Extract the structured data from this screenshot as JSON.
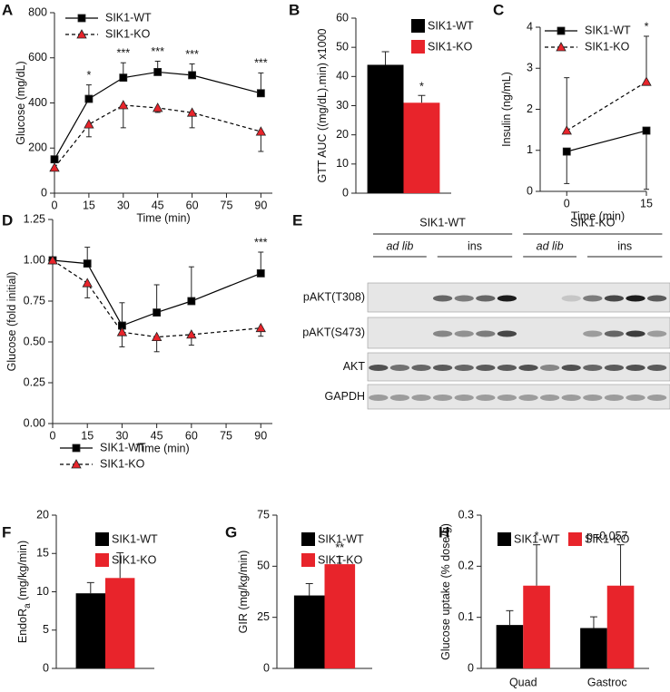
{
  "chart_data": [
    {
      "type": "line",
      "panel": "A",
      "y_label": "Glucose (mg/dL)",
      "x_label": "Time (min)",
      "x": [
        0,
        15,
        30,
        45,
        60,
        90
      ],
      "xlim": [
        0,
        95
      ],
      "xticks": [
        0,
        15,
        30,
        45,
        60,
        75,
        90
      ],
      "ylim": [
        0,
        800
      ],
      "yticks": [
        0,
        200,
        400,
        600,
        800
      ],
      "legend": "upper left",
      "line_color": "#000000",
      "series": [
        {
          "name": "SIK1-WT",
          "color": "#000000",
          "marker": "square",
          "dashed": false,
          "error_direction": "up",
          "values": [
            150,
            418,
            512,
            537,
            523,
            443
          ],
          "errors": [
            10,
            62,
            66,
            48,
            50,
            90
          ]
        },
        {
          "name": "SIK1-KO",
          "color": "#e8242b",
          "marker": "triangle",
          "dashed": true,
          "error_direction": "down",
          "values": [
            113,
            305,
            390,
            378,
            357,
            273
          ],
          "errors": [
            12,
            55,
            100,
            20,
            67,
            88
          ]
        }
      ],
      "annotations": [
        {
          "text": "*",
          "x": 15
        },
        {
          "text": "***",
          "x": 30
        },
        {
          "text": "***",
          "x": 45
        },
        {
          "text": "***",
          "x": 60
        },
        {
          "text": "***",
          "x": 90
        }
      ]
    },
    {
      "type": "bar",
      "panel": "B",
      "y_label": "GTT AUC ((mg/dL).min) x1000",
      "ylim": [
        0,
        60
      ],
      "yticks": [
        0,
        10,
        20,
        30,
        40,
        50,
        60
      ],
      "legend": "upper right",
      "series": [
        {
          "name": "SIK1-WT",
          "color": "#000000",
          "error_direction": "up",
          "values": [
            44
          ],
          "errors": [
            4.5
          ]
        },
        {
          "name": "SIK1-KO",
          "color": "#e8242b",
          "error_direction": "up",
          "values": [
            31
          ],
          "errors": [
            2.5
          ]
        }
      ],
      "annotations": [
        {
          "text": "*",
          "series": "SIK1-KO"
        }
      ]
    },
    {
      "type": "line",
      "panel": "C",
      "y_label": "Insulin (ng/mL)",
      "x_label": "Time (min)",
      "x": [
        0,
        15
      ],
      "xlim": [
        -5,
        15
      ],
      "xticks": [
        0,
        15
      ],
      "ylim": [
        0,
        4
      ],
      "yticks": [
        0,
        1,
        2,
        3,
        4
      ],
      "legend": "upper left",
      "line_color": "#000000",
      "series": [
        {
          "name": "SIK1-WT",
          "color": "#000000",
          "marker": "square",
          "dashed": false,
          "error_direction": "down",
          "values": [
            0.97,
            1.48
          ],
          "errors": [
            0.78,
            1.43
          ]
        },
        {
          "name": "SIK1-KO",
          "color": "#e8242b",
          "marker": "triangle",
          "dashed": true,
          "error_direction": "up",
          "values": [
            1.48,
            2.67
          ],
          "errors": [
            1.29,
            1.11
          ]
        }
      ],
      "annotations": [
        {
          "text": "*",
          "x": 15
        }
      ]
    },
    {
      "type": "line",
      "panel": "D",
      "y_label": "Glucose (fold initial)",
      "x_label": "Time (min)",
      "x": [
        0,
        15,
        30,
        45,
        60,
        90
      ],
      "xlim": [
        0,
        95
      ],
      "xticks": [
        0,
        15,
        30,
        45,
        60,
        75,
        90
      ],
      "ylim": [
        0,
        1.25
      ],
      "yticks": [
        {
          "value": 0,
          "label": "0.00"
        },
        {
          "value": 0.25,
          "label": "0.25"
        },
        {
          "value": 0.5,
          "label": "0.50"
        },
        {
          "value": 0.75,
          "label": "0.75"
        },
        {
          "value": 1,
          "label": "1.00"
        },
        {
          "value": 1.25,
          "label": "1.25"
        }
      ],
      "legend": "lower left",
      "line_color": "#000000",
      "series": [
        {
          "name": "SIK1-WT",
          "color": "#000000",
          "marker": "square",
          "dashed": false,
          "error_direction": "up",
          "values": [
            1.0,
            0.98,
            0.6,
            0.68,
            0.75,
            0.92
          ],
          "errors": [
            0,
            0.1,
            0.14,
            0.17,
            0.21,
            0.13
          ]
        },
        {
          "name": "SIK1-KO",
          "color": "#e8242b",
          "marker": "triangle",
          "dashed": true,
          "error_direction": "down",
          "values": [
            1.0,
            0.86,
            0.56,
            0.53,
            0.545,
            0.585
          ],
          "errors": [
            0,
            0.09,
            0.09,
            0.09,
            0.065,
            0.05
          ]
        }
      ],
      "annotations": [
        {
          "text": "***",
          "x": 90
        }
      ]
    },
    {
      "type": "bar",
      "panel": "F",
      "y_label": "EndoR",
      "y_label_sub": "a",
      "y_label_after": " (mg/kg/min)",
      "ylim": [
        0,
        20
      ],
      "yticks": [
        0,
        5,
        10,
        15,
        20
      ],
      "legend": "upper left",
      "series": [
        {
          "name": "SIK1-WT",
          "color": "#000000",
          "error_direction": "up",
          "values": [
            9.8
          ],
          "errors": [
            1.4
          ]
        },
        {
          "name": "SIK1-KO",
          "color": "#e8242b",
          "error_direction": "up",
          "values": [
            11.8
          ],
          "errors": [
            3.3
          ]
        }
      ]
    },
    {
      "type": "bar",
      "panel": "G",
      "y_label": "GIR (mg/kg/min)",
      "ylim": [
        0,
        75
      ],
      "yticks": [
        0,
        25,
        50,
        75
      ],
      "legend": "upper left",
      "series": [
        {
          "name": "SIK1-WT",
          "color": "#000000",
          "error_direction": "up",
          "values": [
            35.7
          ],
          "errors": [
            5.8
          ]
        },
        {
          "name": "SIK1-KO",
          "color": "#e8242b",
          "error_direction": "up",
          "values": [
            51
          ],
          "errors": [
            3.8
          ]
        }
      ],
      "annotations": [
        {
          "text": "**",
          "series": "SIK1-KO"
        }
      ]
    },
    {
      "type": "bar",
      "panel": "H",
      "y_label": "Glucose uptake (% dose/g)",
      "categories": [
        "Quad",
        "Gastroc"
      ],
      "ylim": [
        0,
        0.3
      ],
      "yticks": [
        0,
        0.1,
        0.2,
        0.3
      ],
      "legend": "upper center",
      "series": [
        {
          "name": "SIK1-WT",
          "color": "#000000",
          "error_direction": "up",
          "values": [
            0.085,
            0.079
          ],
          "errors": [
            0.028,
            0.022
          ]
        },
        {
          "name": "SIK1-KO",
          "color": "#e8242b",
          "error_direction": "up",
          "values": [
            0.162,
            0.162
          ],
          "errors": [
            0.08,
            0.08
          ]
        }
      ],
      "annotations": [
        {
          "text": "*",
          "category": "Quad"
        },
        {
          "text": "p=0.057",
          "category": "Gastroc"
        }
      ]
    }
  ],
  "blot": {
    "panel": "E",
    "groups": [
      {
        "label": "SIK1-WT",
        "conditions": [
          "ad lib",
          "ins"
        ]
      },
      {
        "label": "SIK1-KO",
        "conditions": [
          "ad lib",
          "ins"
        ]
      }
    ],
    "rows": [
      "pAKT(T308)",
      "pAKT(S473)",
      "AKT",
      "GAPDH"
    ]
  }
}
